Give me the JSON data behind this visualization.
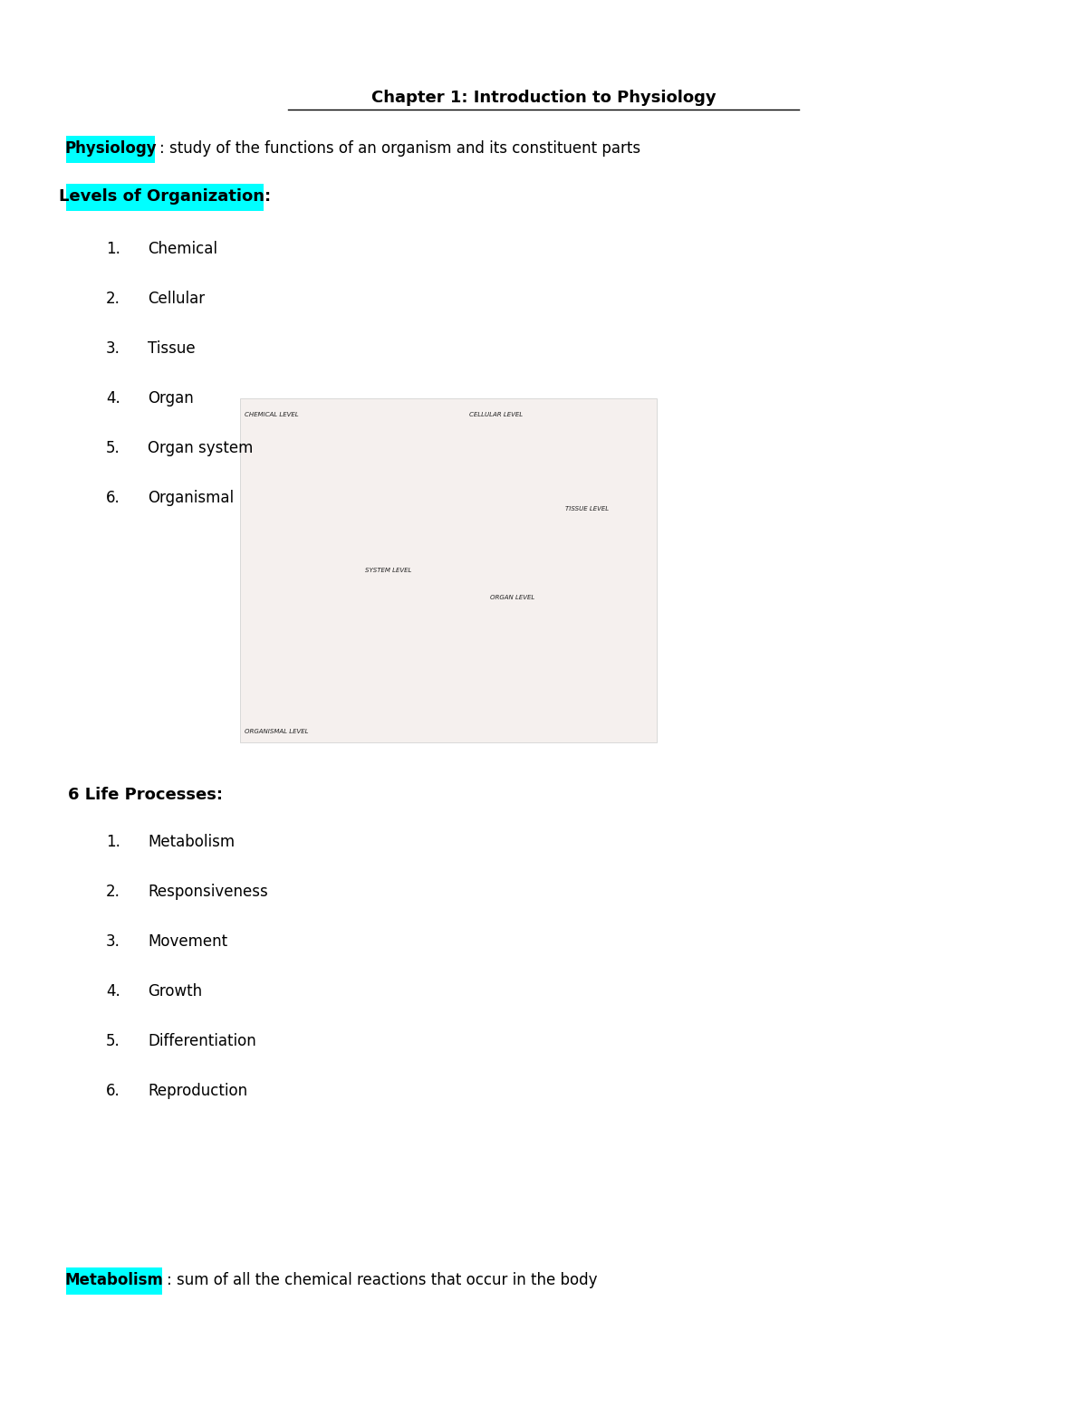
{
  "title": "Chapter 1: Introduction to Physiology",
  "bg_color": "#ffffff",
  "highlight_cyan": "#00FFFF",
  "text_color": "#000000",
  "physiology_highlight": "Physiology",
  "physiology_rest": ": study of the functions of an organism and its constituent parts",
  "section1_header": "Levels of Organization:",
  "section1_items": [
    "Chemical",
    "Cellular",
    "Tissue",
    "Organ",
    "Organ system",
    "Organismal"
  ],
  "section2_header": "6 Life Processes:",
  "section2_items": [
    "Metabolism",
    "Responsiveness",
    "Movement",
    "Growth",
    "Differentiation",
    "Reproduction"
  ],
  "metabolism_highlight": "Metabolism",
  "metabolism_rest": ": sum of all the chemical reactions that occur in the body",
  "title_fontsize": 13,
  "body_fontsize": 12,
  "header_fontsize": 13,
  "item_fontsize": 12
}
